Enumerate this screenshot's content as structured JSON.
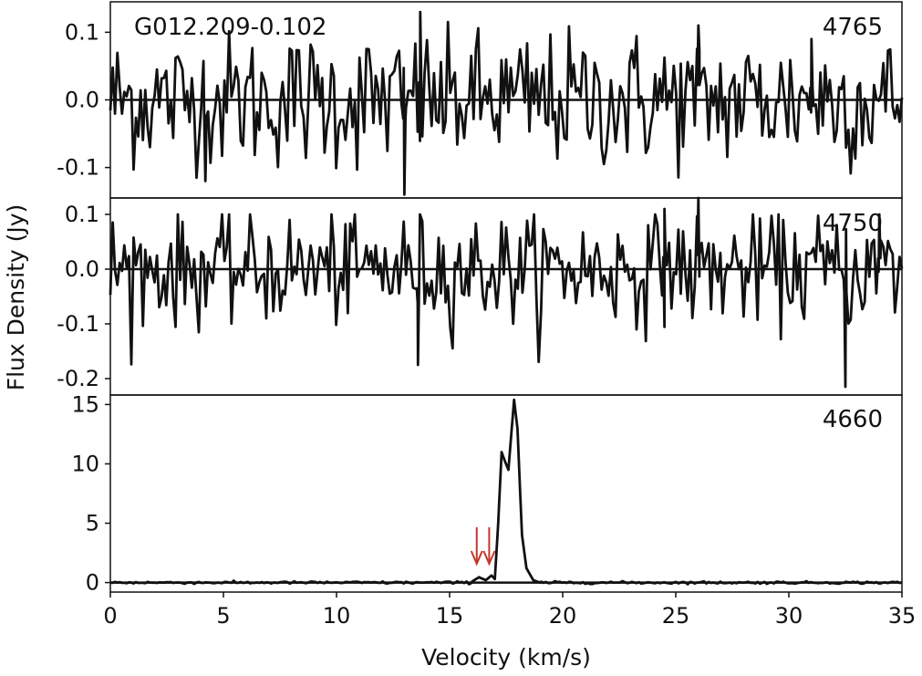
{
  "chart_data": {
    "type": "line",
    "source_label": "G012.209-0.102",
    "xlabel": "Velocity (km/s)",
    "ylabel": "Flux Density (Jy)",
    "xlim": [
      0,
      35
    ],
    "x_ticks": [
      0,
      5,
      10,
      15,
      20,
      25,
      30,
      35
    ],
    "grid": false,
    "colors": {
      "line": "#111111",
      "arrow": "#c0392b",
      "zero": "#111111"
    },
    "panels": [
      {
        "label": "4765",
        "ylim": [
          -0.145,
          0.145
        ],
        "y_ticks": [
          0.1,
          0.0,
          -0.1
        ],
        "y_tick_labels": [
          "0.1",
          "0.0",
          "-0.1"
        ],
        "noise_rms": 0.05,
        "features": [
          {
            "x": 13.0,
            "y": -0.14
          },
          {
            "x": 13.7,
            "y": 0.13
          },
          {
            "x": 4.2,
            "y": -0.12
          },
          {
            "x": 26.0,
            "y": 0.11
          },
          {
            "x": 31.0,
            "y": 0.09
          }
        ]
      },
      {
        "label": "4750",
        "ylim": [
          -0.23,
          0.13
        ],
        "y_ticks": [
          0.1,
          0.0,
          -0.1,
          -0.2
        ],
        "y_tick_labels": [
          "0.1",
          "0.0",
          "-0.1",
          "-0.2"
        ],
        "noise_rms": 0.05,
        "features": [
          {
            "x": 13.6,
            "y": -0.175
          },
          {
            "x": 32.5,
            "y": -0.215
          },
          {
            "x": 26.0,
            "y": 0.13
          },
          {
            "x": 24.5,
            "y": 0.11
          },
          {
            "x": 34.0,
            "y": 0.1
          }
        ]
      },
      {
        "label": "4660",
        "ylim": [
          -0.8,
          15.8
        ],
        "y_ticks": [
          15,
          10,
          5,
          0
        ],
        "y_tick_labels": [
          "15",
          "10",
          "5",
          "0"
        ],
        "noise_rms": 0.05,
        "peaks": [
          {
            "x": 17.3,
            "y": 11.0
          },
          {
            "x": 17.85,
            "y": 15.4
          }
        ],
        "profile": [
          [
            16.0,
            0.1
          ],
          [
            16.3,
            0.45
          ],
          [
            16.6,
            0.2
          ],
          [
            16.85,
            0.6
          ],
          [
            17.0,
            0.3
          ],
          [
            17.15,
            5.0
          ],
          [
            17.3,
            11.0
          ],
          [
            17.45,
            10.2
          ],
          [
            17.6,
            9.5
          ],
          [
            17.85,
            15.4
          ],
          [
            18.0,
            13.0
          ],
          [
            18.2,
            4.0
          ],
          [
            18.4,
            1.2
          ],
          [
            18.7,
            0.2
          ],
          [
            19.0,
            0.0
          ]
        ],
        "arrows": [
          16.2,
          16.75
        ]
      }
    ]
  }
}
